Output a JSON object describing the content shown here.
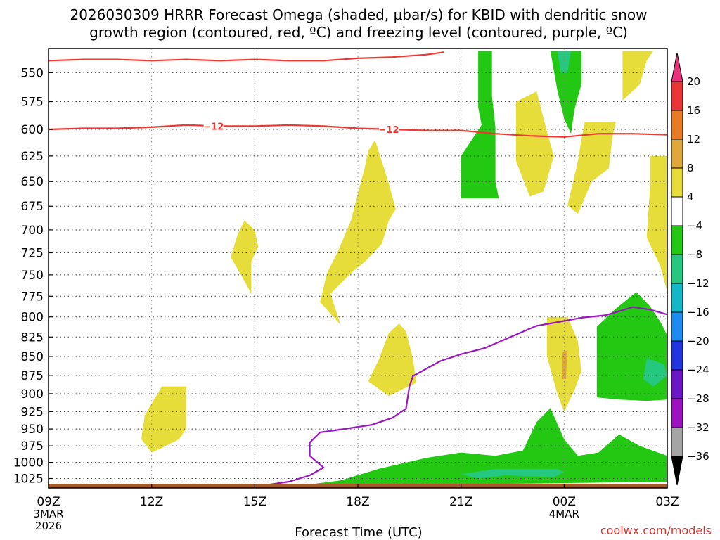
{
  "chart_data": {
    "type": "heatmap",
    "title": [
      "2026030309 HRRR Forecast Omega (shaded, μbar/s) for KBID with dendritic snow",
      "growth region (contoured, red, ºC) and freezing level (contoured, purple, ºC)"
    ],
    "xlabel": "Forecast Time (UTC)",
    "ylabel": "",
    "x_ticks": [
      {
        "hour": 0,
        "label": "09Z",
        "date": [
          "3MAR",
          "2026"
        ]
      },
      {
        "hour": 3,
        "label": "12Z"
      },
      {
        "hour": 6,
        "label": "15Z"
      },
      {
        "hour": 9,
        "label": "18Z"
      },
      {
        "hour": 12,
        "label": "21Z"
      },
      {
        "hour": 15,
        "label": "00Z",
        "date": [
          "4MAR"
        ]
      },
      {
        "hour": 18,
        "label": "03Z"
      }
    ],
    "x_range_hours": [
      0,
      18
    ],
    "y_ticks": [
      550,
      575,
      600,
      625,
      650,
      675,
      700,
      725,
      750,
      775,
      800,
      825,
      850,
      875,
      900,
      925,
      950,
      975,
      1000,
      1025
    ],
    "y_range_hPa": [
      530,
      1040
    ],
    "y_scale": "log",
    "colorbar": {
      "levels": [
        "20",
        "16",
        "12",
        "8",
        "4",
        "−4",
        "−8",
        "−12",
        "−16",
        "−20",
        "−24",
        "−28",
        "−32",
        "−36"
      ],
      "colors": [
        "#e8337c",
        "#ec3535",
        "#e87b23",
        "#e0a83a",
        "#e6dd3b",
        "#ffffff",
        "#22c811",
        "#26c77f",
        "#12b8c8",
        "#1c8cf0",
        "#2236e0",
        "#6c16c8",
        "#9c12c0",
        "#a5a5a5",
        "#000000"
      ]
    },
    "contours": [
      {
        "name": "minus-12-line",
        "color": "#ec3a32",
        "label": "−12",
        "points": [
          [
            0,
            600
          ],
          [
            1,
            599
          ],
          [
            2,
            599
          ],
          [
            3,
            598
          ],
          [
            4,
            596
          ],
          [
            5,
            597
          ],
          [
            6,
            597
          ],
          [
            7,
            596
          ],
          [
            8,
            597
          ],
          [
            9,
            599
          ],
          [
            10,
            600
          ],
          [
            11,
            601
          ],
          [
            12,
            601
          ],
          [
            13,
            604
          ],
          [
            14,
            606
          ],
          [
            15,
            607
          ],
          [
            16,
            604
          ],
          [
            17,
            604
          ],
          [
            18,
            605
          ]
        ]
      },
      {
        "name": "minus-18-line",
        "color": "#ec3a32",
        "label": "",
        "points": [
          [
            0,
            540
          ],
          [
            1,
            539
          ],
          [
            2,
            539
          ],
          [
            3,
            540
          ],
          [
            4,
            539
          ],
          [
            5,
            540
          ],
          [
            6,
            539
          ],
          [
            7,
            540
          ],
          [
            8,
            540
          ],
          [
            9,
            538
          ],
          [
            10,
            537
          ],
          [
            11,
            535
          ],
          [
            11.5,
            533
          ]
        ]
      },
      {
        "name": "freezing-level-line",
        "color": "#9a17c0",
        "label": "",
        "points": [
          [
            6,
            1038
          ],
          [
            7,
            1030
          ],
          [
            7.6,
            1020
          ],
          [
            8,
            1008
          ],
          [
            7.6,
            990
          ],
          [
            7.6,
            970
          ],
          [
            7.9,
            955
          ],
          [
            8.6,
            950
          ],
          [
            9.4,
            944
          ],
          [
            10,
            934
          ],
          [
            10.4,
            921
          ],
          [
            10.5,
            890
          ],
          [
            10.6,
            876
          ],
          [
            11.4,
            856
          ],
          [
            12,
            847
          ],
          [
            12.7,
            839
          ],
          [
            13.6,
            822
          ],
          [
            14.2,
            811
          ],
          [
            15,
            805
          ],
          [
            15.5,
            801
          ],
          [
            16.2,
            798
          ],
          [
            17,
            788
          ],
          [
            17.5,
            791
          ],
          [
            18,
            797
          ]
        ]
      }
    ],
    "shaded_regions": [
      {
        "name": "green-region-upper-left",
        "value_range": "-8 to -4",
        "color": "#22c811",
        "points": [
          [
            12,
            667
          ],
          [
            13.1,
            667
          ],
          [
            13,
            650
          ],
          [
            13,
            620
          ],
          [
            13,
            598
          ],
          [
            12.9,
            570
          ],
          [
            12.9,
            532
          ],
          [
            12.5,
            532
          ],
          [
            12.5,
            580
          ],
          [
            12.6,
            596
          ],
          [
            12,
            625
          ]
        ]
      },
      {
        "name": "green-region-top-center",
        "value_range": "-8 to -4",
        "color": "#22c811",
        "points": [
          [
            14.6,
            532
          ],
          [
            15.5,
            532
          ],
          [
            15.5,
            560
          ],
          [
            15.3,
            582
          ],
          [
            15.2,
            604
          ],
          [
            15,
            590
          ],
          [
            14.8,
            565
          ]
        ]
      },
      {
        "name": "teal-region-top-center",
        "value_range": "-12 to -8",
        "color": "#26c77f",
        "points": [
          [
            14.8,
            532
          ],
          [
            15.2,
            532
          ],
          [
            15.1,
            550
          ],
          [
            14.9,
            550
          ]
        ]
      },
      {
        "name": "green-region-right-mid",
        "value_range": "-8 to -4",
        "color": "#22c811",
        "points": [
          [
            15.95,
            812
          ],
          [
            16.5,
            790
          ],
          [
            17.1,
            770
          ],
          [
            17.5,
            787
          ],
          [
            17.8,
            806
          ],
          [
            18,
            823
          ],
          [
            18,
            908
          ],
          [
            17.4,
            910
          ],
          [
            16.6,
            908
          ],
          [
            15.95,
            905
          ]
        ]
      },
      {
        "name": "teal-region-right-mid",
        "value_range": "-12 to -8",
        "color": "#26c77f",
        "points": [
          [
            17.4,
            852
          ],
          [
            17.9,
            860
          ],
          [
            18,
            875
          ],
          [
            17.6,
            890
          ],
          [
            17.3,
            880
          ]
        ]
      },
      {
        "name": "green-region-bottom",
        "value_range": "-8 to -4",
        "color": "#22c811",
        "points": [
          [
            7.5,
            1035
          ],
          [
            8.5,
            1028
          ],
          [
            9.6,
            1010
          ],
          [
            11,
            993
          ],
          [
            12,
            985
          ],
          [
            13,
            990
          ],
          [
            13.8,
            982
          ],
          [
            14.2,
            940
          ],
          [
            14.6,
            920
          ],
          [
            15,
            965
          ],
          [
            15.4,
            990
          ],
          [
            16,
            985
          ],
          [
            16.6,
            958
          ],
          [
            17.2,
            975
          ],
          [
            18,
            990
          ],
          [
            18,
            1030
          ],
          [
            14,
            1033
          ],
          [
            10,
            1035
          ]
        ]
      },
      {
        "name": "teal-region-bottom",
        "value_range": "-12 to -8",
        "color": "#26c77f",
        "points": [
          [
            12,
            1018
          ],
          [
            13,
            1010
          ],
          [
            14.2,
            1010
          ],
          [
            14.8,
            1010
          ],
          [
            15,
            1015
          ],
          [
            14.7,
            1023
          ],
          [
            13.3,
            1020
          ],
          [
            12.5,
            1025
          ]
        ]
      },
      {
        "name": "yellow-region-1",
        "value_range": "4 to 8",
        "color": "#e6dd3b",
        "points": [
          [
            3,
            985
          ],
          [
            3.3,
            978
          ],
          [
            3.8,
            965
          ],
          [
            4,
            950
          ],
          [
            4,
            920
          ],
          [
            4,
            890
          ],
          [
            3.3,
            890
          ],
          [
            2.8,
            930
          ],
          [
            2.7,
            965
          ]
        ]
      },
      {
        "name": "yellow-region-2",
        "value_range": "4 to 8",
        "color": "#e6dd3b",
        "points": [
          [
            5.9,
            735
          ],
          [
            6.1,
            718
          ],
          [
            6,
            700
          ],
          [
            5.7,
            690
          ],
          [
            5.5,
            705
          ],
          [
            5.3,
            730
          ],
          [
            5.6,
            750
          ],
          [
            5.9,
            772
          ]
        ]
      },
      {
        "name": "yellow-region-3",
        "value_range": "4 to 8",
        "color": "#e6dd3b",
        "points": [
          [
            8.2,
            772
          ],
          [
            8.8,
            748
          ],
          [
            9.2,
            735
          ],
          [
            9.7,
            715
          ],
          [
            9.9,
            690
          ],
          [
            10.1,
            678
          ],
          [
            9.9,
            652
          ],
          [
            9.6,
            620
          ],
          [
            9.5,
            610
          ],
          [
            9.3,
            620
          ],
          [
            9.2,
            636
          ],
          [
            8.8,
            690
          ],
          [
            8.4,
            725
          ],
          [
            8.1,
            748
          ],
          [
            7.9,
            782
          ],
          [
            8.5,
            810
          ]
        ]
      },
      {
        "name": "yellow-region-4",
        "value_range": "4 to 8",
        "color": "#e6dd3b",
        "points": [
          [
            10.7,
            885
          ],
          [
            10.6,
            852
          ],
          [
            10.4,
            818
          ],
          [
            10.2,
            808
          ],
          [
            9.9,
            820
          ],
          [
            9.6,
            855
          ],
          [
            9.3,
            883
          ],
          [
            9.9,
            903
          ]
        ]
      },
      {
        "name": "yellow-region-5",
        "value_range": "4 to 8",
        "color": "#e6dd3b",
        "points": [
          [
            14,
            665
          ],
          [
            14.4,
            660
          ],
          [
            14.7,
            625
          ],
          [
            14.5,
            602
          ],
          [
            14.2,
            566
          ],
          [
            13.6,
            575
          ],
          [
            13.6,
            605
          ],
          [
            13.6,
            630
          ]
        ]
      },
      {
        "name": "yellow-region-6",
        "value_range": "4 to 8",
        "color": "#e6dd3b",
        "points": [
          [
            15.4,
            683
          ],
          [
            15.8,
            650
          ],
          [
            16.3,
            637
          ],
          [
            16.4,
            608
          ],
          [
            16.5,
            593
          ],
          [
            15.6,
            593
          ],
          [
            15.5,
            610
          ],
          [
            15.4,
            630
          ],
          [
            15.1,
            674
          ]
        ]
      },
      {
        "name": "yellow-region-7",
        "value_range": "4 to 8",
        "color": "#e6dd3b",
        "points": [
          [
            16.7,
            574
          ],
          [
            17.2,
            560
          ],
          [
            17.4,
            540
          ],
          [
            17.6,
            532
          ],
          [
            16.7,
            532
          ]
        ]
      },
      {
        "name": "yellow-region-8",
        "value_range": "4 to 8",
        "color": "#e6dd3b",
        "points": [
          [
            17.5,
            655
          ],
          [
            17.4,
            708
          ],
          [
            17.8,
            740
          ],
          [
            18,
            770
          ],
          [
            18,
            625
          ],
          [
            17.5,
            625
          ]
        ]
      },
      {
        "name": "yellow-region-9",
        "value_range": "4 to 8",
        "color": "#e6dd3b",
        "points": [
          [
            14.5,
            800
          ],
          [
            14.5,
            850
          ],
          [
            14.8,
            900
          ],
          [
            15,
            925
          ],
          [
            15.3,
            895
          ],
          [
            15.5,
            870
          ],
          [
            15.4,
            830
          ],
          [
            15.1,
            800
          ]
        ]
      },
      {
        "name": "orange-region-9",
        "value_range": "8 to 12",
        "color": "#e0a83a",
        "points": [
          [
            14.95,
            845
          ],
          [
            15.1,
            842
          ],
          [
            15.05,
            880
          ],
          [
            14.95,
            880
          ]
        ]
      }
    ],
    "ground_color": "#a55a2a"
  },
  "watermark": "coolwx.com/models"
}
